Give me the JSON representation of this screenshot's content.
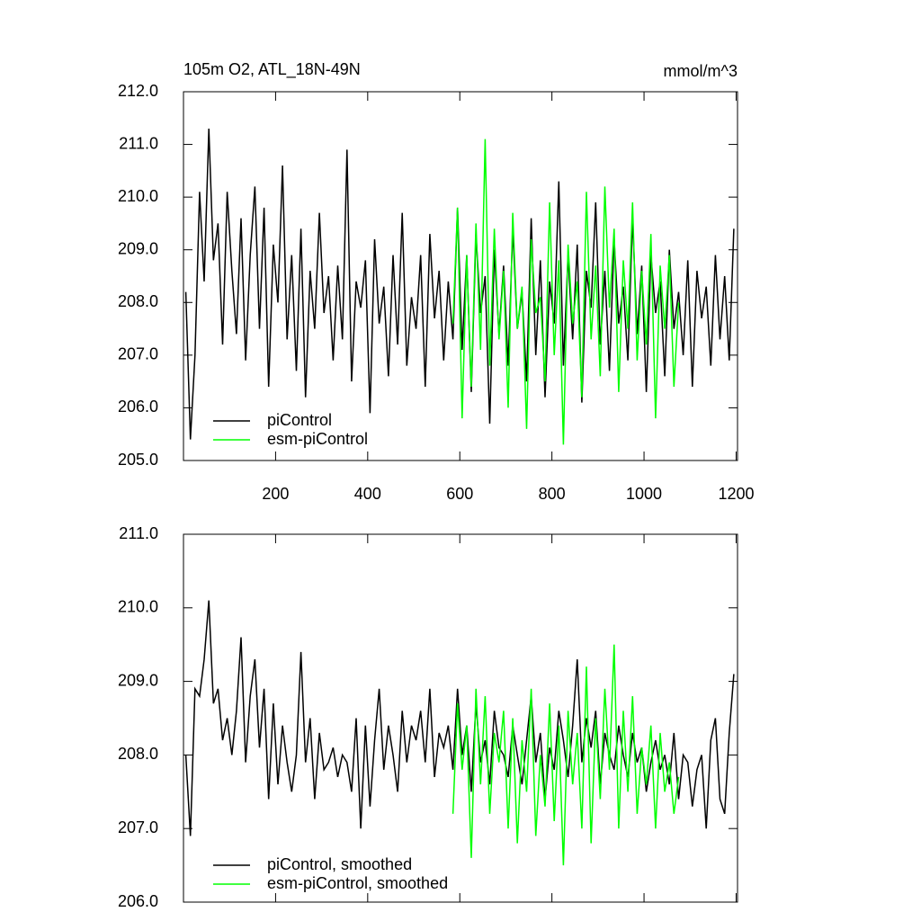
{
  "chart_data": [
    {
      "type": "line",
      "title": "105m O2, ATL_18N-49N",
      "units": "mmol/m^3",
      "xlim": [
        0,
        1203
      ],
      "ylim": [
        205,
        212
      ],
      "xticks": [
        200,
        400,
        600,
        800,
        1000,
        1200
      ],
      "yticks": [
        {
          "value": 205,
          "label": "205.0"
        },
        {
          "value": 206,
          "label": "206.0"
        },
        {
          "value": 207,
          "label": "207.0"
        },
        {
          "value": 208,
          "label": "208.0"
        },
        {
          "value": 209,
          "label": "209.0"
        },
        {
          "value": 210,
          "label": "210.0"
        },
        {
          "value": 211,
          "label": "211.0"
        },
        {
          "value": 212,
          "label": "212.0"
        }
      ],
      "series": [
        {
          "name": "piControl",
          "color": "#000000",
          "start": 5,
          "step": 10,
          "values": [
            208.2,
            205.4,
            207.0,
            210.1,
            208.4,
            211.3,
            208.8,
            209.5,
            207.2,
            210.1,
            208.6,
            207.4,
            209.6,
            206.9,
            208.9,
            210.2,
            207.5,
            209.8,
            206.4,
            209.1,
            208.0,
            210.6,
            207.3,
            208.9,
            206.7,
            209.4,
            206.2,
            208.6,
            207.5,
            209.7,
            207.8,
            208.5,
            206.9,
            208.7,
            207.3,
            210.9,
            206.5,
            208.4,
            207.9,
            208.8,
            205.9,
            209.2,
            207.6,
            208.3,
            206.6,
            208.9,
            207.2,
            209.7,
            206.8,
            208.1,
            207.5,
            208.9,
            206.4,
            209.3,
            207.7,
            208.6,
            206.9,
            208.4,
            207.3,
            209.8,
            207.1,
            208.9,
            206.3,
            209.3,
            207.8,
            208.5,
            205.7,
            209.0,
            207.4,
            208.7,
            206.8,
            209.4,
            207.5,
            208.2,
            206.5,
            209.6,
            207.0,
            208.8,
            206.2,
            208.4,
            207.6,
            210.3,
            206.8,
            208.9,
            207.3,
            209.1,
            206.1,
            208.6,
            207.9,
            209.9,
            207.2,
            208.6,
            206.7,
            209.2,
            207.6,
            208.3,
            206.9,
            209.6,
            207.4,
            208.7,
            206.3,
            208.9,
            207.8,
            208.4,
            206.6,
            209.0,
            207.5,
            208.2,
            207.0,
            208.8,
            206.4,
            208.6,
            207.7,
            208.3,
            206.8,
            208.9,
            207.3,
            208.5,
            206.9,
            209.4
          ]
        },
        {
          "name": "esm-piControl",
          "color": "#00ff00",
          "start": 585,
          "step": 10,
          "values": [
            207.6,
            209.8,
            205.8,
            208.9,
            206.4,
            209.5,
            207.1,
            211.1,
            206.8,
            209.4,
            207.3,
            208.6,
            206.0,
            209.7,
            207.5,
            208.3,
            205.6,
            209.2,
            207.8,
            208.1,
            206.5,
            209.9,
            207.0,
            208.8,
            205.3,
            209.1,
            207.6,
            208.4,
            206.2,
            210.1,
            207.3,
            208.7,
            206.6,
            210.2,
            207.9,
            209.4,
            206.3,
            208.8,
            207.5,
            209.9,
            206.9,
            208.6,
            207.2,
            209.3,
            205.8,
            208.7,
            207.5,
            208.9,
            206.4,
            208.0
          ]
        }
      ]
    },
    {
      "type": "line",
      "xlim": [
        0,
        1203
      ],
      "ylim": [
        206,
        211
      ],
      "yticks": [
        {
          "value": 206,
          "label": "206.0"
        },
        {
          "value": 207,
          "label": "207.0"
        },
        {
          "value": 208,
          "label": "208.0"
        },
        {
          "value": 209,
          "label": "209.0"
        },
        {
          "value": 210,
          "label": "210.0"
        },
        {
          "value": 211,
          "label": "211.0"
        }
      ],
      "series": [
        {
          "name": "piControl, smoothed",
          "color": "#000000",
          "start": 5,
          "step": 10,
          "values": [
            208.0,
            206.9,
            208.9,
            208.8,
            209.3,
            210.1,
            208.7,
            208.9,
            208.2,
            208.5,
            208.0,
            208.6,
            209.6,
            207.9,
            208.8,
            209.3,
            208.1,
            208.9,
            207.4,
            208.7,
            207.6,
            208.4,
            207.9,
            207.5,
            208.0,
            209.4,
            207.9,
            208.5,
            207.4,
            208.3,
            207.8,
            207.9,
            208.1,
            207.7,
            208.0,
            207.9,
            207.5,
            208.5,
            207.0,
            208.4,
            207.3,
            208.2,
            208.9,
            207.8,
            208.4,
            208.0,
            207.5,
            208.6,
            207.9,
            208.4,
            208.2,
            208.6,
            207.9,
            208.9,
            207.7,
            208.3,
            208.1,
            208.4,
            207.8,
            208.9,
            208.0,
            208.4,
            207.5,
            208.7,
            207.9,
            208.2,
            207.6,
            208.6,
            208.1,
            208.0,
            207.7,
            208.4,
            208.0,
            207.6,
            208.2,
            208.8,
            207.9,
            208.3,
            207.4,
            208.1,
            207.8,
            208.6,
            208.2,
            207.7,
            208.4,
            209.3,
            207.9,
            208.5,
            208.1,
            208.6,
            207.6,
            208.3,
            208.0,
            207.8,
            208.4,
            208.0,
            207.7,
            208.3,
            207.9,
            208.1,
            207.5,
            207.9,
            208.2,
            207.8,
            208.0,
            207.6,
            208.3,
            207.4,
            208.0,
            207.9,
            207.3,
            207.8,
            208.0,
            207.0,
            208.2,
            208.5,
            207.4,
            207.2,
            208.3,
            209.1
          ]
        },
        {
          "name": "esm-piControl, smoothed",
          "color": "#00ff00",
          "start": 585,
          "step": 10,
          "values": [
            207.2,
            208.7,
            207.8,
            208.4,
            206.6,
            208.9,
            207.6,
            208.8,
            207.2,
            208.3,
            207.9,
            208.6,
            207.0,
            208.5,
            206.8,
            208.2,
            207.5,
            208.9,
            206.9,
            208.0,
            207.3,
            208.7,
            207.1,
            208.4,
            206.5,
            208.6,
            207.6,
            208.3,
            207.0,
            209.2,
            206.8,
            208.5,
            207.4,
            208.9,
            207.8,
            209.5,
            207.0,
            208.6,
            207.5,
            208.8,
            207.2,
            208.1,
            207.6,
            208.4,
            207.0,
            208.3,
            207.5,
            207.9,
            207.2,
            207.7
          ]
        }
      ]
    }
  ]
}
